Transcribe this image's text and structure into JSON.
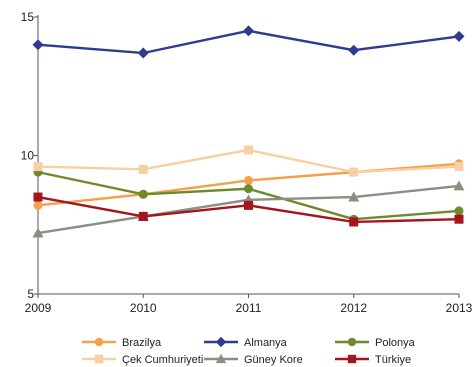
{
  "chart_data": {
    "type": "line",
    "title": "",
    "xlabel": "",
    "ylabel": "",
    "x": [
      "2009",
      "2010",
      "2011",
      "2012",
      "2013"
    ],
    "ylim": [
      5,
      15
    ],
    "yticks": [
      5,
      10,
      15
    ],
    "grid": false,
    "legend_position": "bottom",
    "series": [
      {
        "name": "Brazilya",
        "color": "#f5a04a",
        "marker": "circle",
        "values": [
          8.2,
          8.6,
          9.1,
          9.4,
          9.7
        ]
      },
      {
        "name": "Almanya",
        "color": "#2e3b8f",
        "marker": "diamond",
        "values": [
          14.0,
          13.7,
          14.5,
          13.8,
          14.3
        ]
      },
      {
        "name": "Polonya",
        "color": "#6f8a2e",
        "marker": "circle",
        "values": [
          9.4,
          8.6,
          8.8,
          7.7,
          8.0
        ]
      },
      {
        "name": "Çek Cumhuriyeti",
        "color": "#f8cfa3",
        "marker": "square",
        "values": [
          9.6,
          9.5,
          10.2,
          9.4,
          9.6
        ]
      },
      {
        "name": "Güney Kore",
        "color": "#8a8f80",
        "marker": "triangle",
        "values": [
          7.2,
          7.8,
          8.4,
          8.5,
          8.9
        ]
      },
      {
        "name": "Türkiye",
        "color": "#a3161d",
        "marker": "square",
        "values": [
          8.5,
          7.8,
          8.2,
          7.6,
          7.7
        ]
      }
    ]
  }
}
